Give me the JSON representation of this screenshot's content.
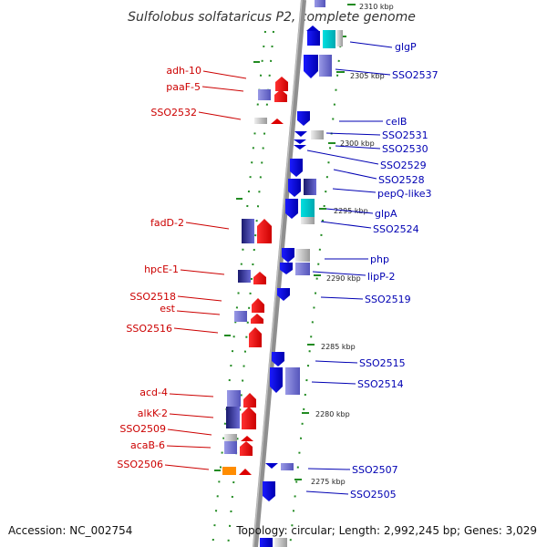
{
  "title": "Sulfolobus solfataricus P2, complete genome",
  "footer": {
    "accession": "Accession: NC_002754",
    "topology": "Topology: circular; Length: 2,992,245 bp; Genes: 3,029"
  },
  "colors": {
    "forward": "#cc0000",
    "reverse": "#0000cc",
    "backbone": "#8a8a8a",
    "dots": "#228b22"
  },
  "scale_ticks": [
    {
      "label": "2310 kbp"
    },
    {
      "label": "2305 kbp"
    },
    {
      "label": "2300 kbp"
    },
    {
      "label": "2295 kbp"
    },
    {
      "label": "2290 kbp"
    },
    {
      "label": "2285 kbp"
    },
    {
      "label": "2280 kbp"
    },
    {
      "label": "2275 kbp"
    }
  ],
  "left_labels": [
    {
      "name": "adh-10"
    },
    {
      "name": "paaF-5"
    },
    {
      "name": "SSO2532"
    },
    {
      "name": "fadD-2"
    },
    {
      "name": "hpcE-1"
    },
    {
      "name": "SSO2518"
    },
    {
      "name": "est"
    },
    {
      "name": "SSO2516"
    },
    {
      "name": "acd-4"
    },
    {
      "name": "alkK-2"
    },
    {
      "name": "SSO2509"
    },
    {
      "name": "acaB-6"
    },
    {
      "name": "SSO2506"
    }
  ],
  "right_labels": [
    {
      "name": "glgP"
    },
    {
      "name": "SSO2537"
    },
    {
      "name": "celB"
    },
    {
      "name": "SSO2531"
    },
    {
      "name": "SSO2530"
    },
    {
      "name": "SSO2529"
    },
    {
      "name": "SSO2528"
    },
    {
      "name": "pepQ-like3"
    },
    {
      "name": "glpA"
    },
    {
      "name": "SSO2524"
    },
    {
      "name": "php"
    },
    {
      "name": "lipP-2"
    },
    {
      "name": "SSO2519"
    },
    {
      "name": "SSO2515"
    },
    {
      "name": "SSO2514"
    },
    {
      "name": "SSO2507"
    },
    {
      "name": "SSO2505"
    }
  ]
}
